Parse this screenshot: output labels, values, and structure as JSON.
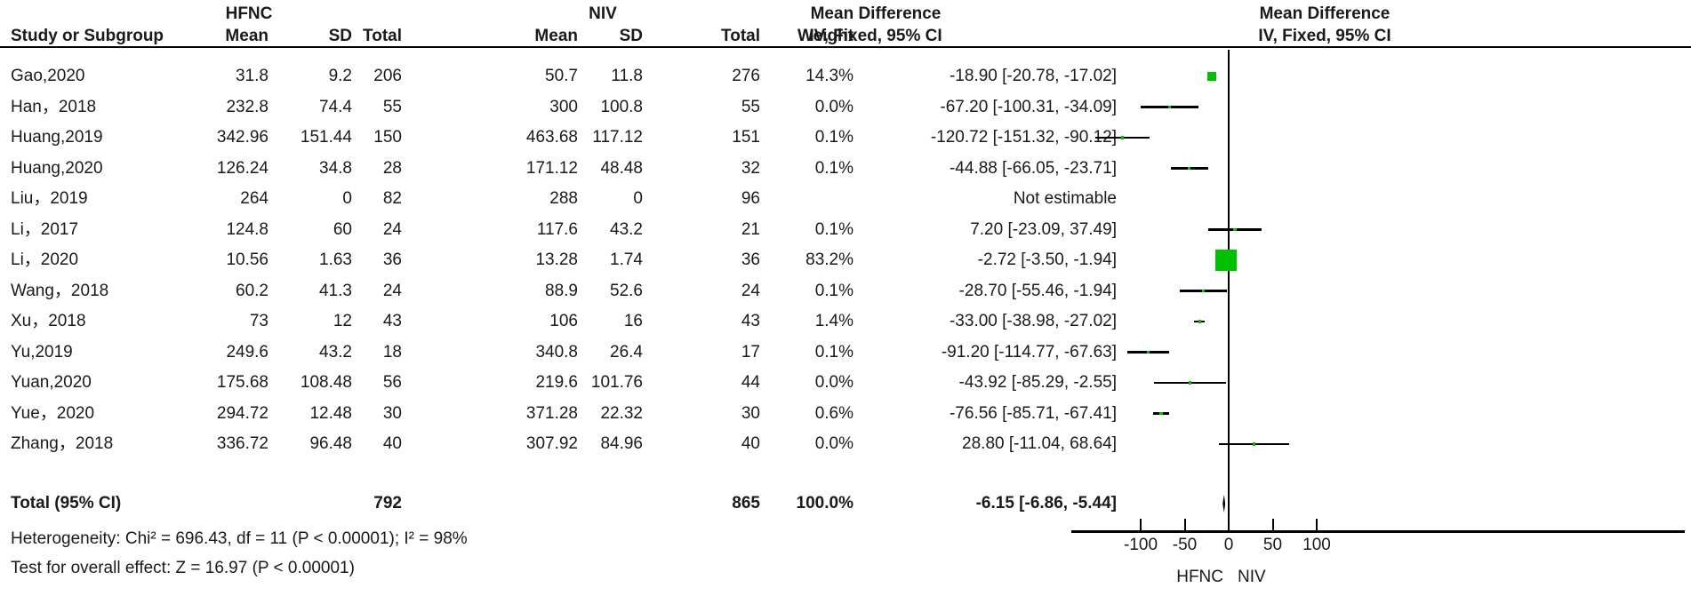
{
  "header": {
    "study_col": "Study or Subgroup",
    "group1_label": "HFNC",
    "group2_label": "NIV",
    "mean_label": "Mean",
    "sd_label": "SD",
    "total_label": "Total",
    "weight_label": "Weight",
    "effect_label": "Mean Difference",
    "method_label": "IV, Fixed, 95% CI"
  },
  "chart_data": {
    "type": "forest",
    "effect_measure": "Mean Difference",
    "model": "IV, Fixed, 95% CI",
    "marker_color": "#00c000",
    "line_color": "#000000",
    "axis": {
      "ticks": [
        -100,
        -50,
        0,
        50,
        100
      ],
      "label_left": "HFNC",
      "label_right": "NIV"
    },
    "studies": [
      {
        "name": "Gao,2020",
        "mean1": "31.8",
        "sd1": "9.2",
        "total1": "206",
        "mean2": "50.7",
        "sd2": "11.8",
        "total2": "276",
        "weight": "14.3%",
        "ci_text": "-18.90 [-20.78, -17.02]",
        "md": -18.9,
        "lo": -20.78,
        "hi": -17.02,
        "weight_pct": 14.3
      },
      {
        "name": "Han，2018",
        "mean1": "232.8",
        "sd1": "74.4",
        "total1": "55",
        "mean2": "300",
        "sd2": "100.8",
        "total2": "55",
        "weight": "0.0%",
        "ci_text": "-67.20 [-100.31, -34.09]",
        "md": -67.2,
        "lo": -100.31,
        "hi": -34.09,
        "weight_pct": 0.0
      },
      {
        "name": "Huang,2019",
        "mean1": "342.96",
        "sd1": "151.44",
        "total1": "150",
        "mean2": "463.68",
        "sd2": "117.12",
        "total2": "151",
        "weight": "0.1%",
        "ci_text": "-120.72 [-151.32, -90.12]",
        "md": -120.72,
        "lo": -151.32,
        "hi": -90.12,
        "weight_pct": 0.1
      },
      {
        "name": "Huang,2020",
        "mean1": "126.24",
        "sd1": "34.8",
        "total1": "28",
        "mean2": "171.12",
        "sd2": "48.48",
        "total2": "32",
        "weight": "0.1%",
        "ci_text": "-44.88 [-66.05, -23.71]",
        "md": -44.88,
        "lo": -66.05,
        "hi": -23.71,
        "weight_pct": 0.1
      },
      {
        "name": "Liu，2019",
        "mean1": "264",
        "sd1": "0",
        "total1": "82",
        "mean2": "288",
        "sd2": "0",
        "total2": "96",
        "weight": "",
        "ci_text": "Not estimable",
        "md": null,
        "lo": null,
        "hi": null,
        "weight_pct": null
      },
      {
        "name": "Li，2017",
        "mean1": "124.8",
        "sd1": "60",
        "total1": "24",
        "mean2": "117.6",
        "sd2": "43.2",
        "total2": "21",
        "weight": "0.1%",
        "ci_text": "7.20 [-23.09, 37.49]",
        "md": 7.2,
        "lo": -23.09,
        "hi": 37.49,
        "weight_pct": 0.1
      },
      {
        "name": "Li，2020",
        "mean1": "10.56",
        "sd1": "1.63",
        "total1": "36",
        "mean2": "13.28",
        "sd2": "1.74",
        "total2": "36",
        "weight": "83.2%",
        "ci_text": "-2.72 [-3.50, -1.94]",
        "md": -2.72,
        "lo": -3.5,
        "hi": -1.94,
        "weight_pct": 83.2
      },
      {
        "name": "Wang，2018",
        "mean1": "60.2",
        "sd1": "41.3",
        "total1": "24",
        "mean2": "88.9",
        "sd2": "52.6",
        "total2": "24",
        "weight": "0.1%",
        "ci_text": "-28.70 [-55.46, -1.94]",
        "md": -28.7,
        "lo": -55.46,
        "hi": -1.94,
        "weight_pct": 0.1
      },
      {
        "name": "Xu，2018",
        "mean1": "73",
        "sd1": "12",
        "total1": "43",
        "mean2": "106",
        "sd2": "16",
        "total2": "43",
        "weight": "1.4%",
        "ci_text": "-33.00 [-38.98, -27.02]",
        "md": -33.0,
        "lo": -38.98,
        "hi": -27.02,
        "weight_pct": 1.4
      },
      {
        "name": "Yu,2019",
        "mean1": "249.6",
        "sd1": "43.2",
        "total1": "18",
        "mean2": "340.8",
        "sd2": "26.4",
        "total2": "17",
        "weight": "0.1%",
        "ci_text": "-91.20 [-114.77, -67.63]",
        "md": -91.2,
        "lo": -114.77,
        "hi": -67.63,
        "weight_pct": 0.1
      },
      {
        "name": "Yuan,2020",
        "mean1": "175.68",
        "sd1": "108.48",
        "total1": "56",
        "mean2": "219.6",
        "sd2": "101.76",
        "total2": "44",
        "weight": "0.0%",
        "ci_text": "-43.92 [-85.29, -2.55]",
        "md": -43.92,
        "lo": -85.29,
        "hi": -2.55,
        "weight_pct": 0.0
      },
      {
        "name": "Yue，2020",
        "mean1": "294.72",
        "sd1": "12.48",
        "total1": "30",
        "mean2": "371.28",
        "sd2": "22.32",
        "total2": "30",
        "weight": "0.6%",
        "ci_text": "-76.56 [-85.71, -67.41]",
        "md": -76.56,
        "lo": -85.71,
        "hi": -67.41,
        "weight_pct": 0.6
      },
      {
        "name": "Zhang，2018",
        "mean1": "336.72",
        "sd1": "96.48",
        "total1": "40",
        "mean2": "307.92",
        "sd2": "84.96",
        "total2": "40",
        "weight": "0.0%",
        "ci_text": "28.80 [-11.04, 68.64]",
        "md": 28.8,
        "lo": -11.04,
        "hi": 68.64,
        "weight_pct": 0.0
      }
    ],
    "total": {
      "label": "Total (95% CI)",
      "total1": "792",
      "total2": "865",
      "weight": "100.0%",
      "ci_text": "-6.15 [-6.86, -5.44]",
      "md": -6.15,
      "lo": -6.86,
      "hi": -5.44
    },
    "heterogeneity": "Heterogeneity: Chi² = 696.43, df = 11 (P < 0.00001); I² = 98%",
    "overall_effect": "Test for overall effect: Z = 16.97 (P < 0.00001)"
  }
}
